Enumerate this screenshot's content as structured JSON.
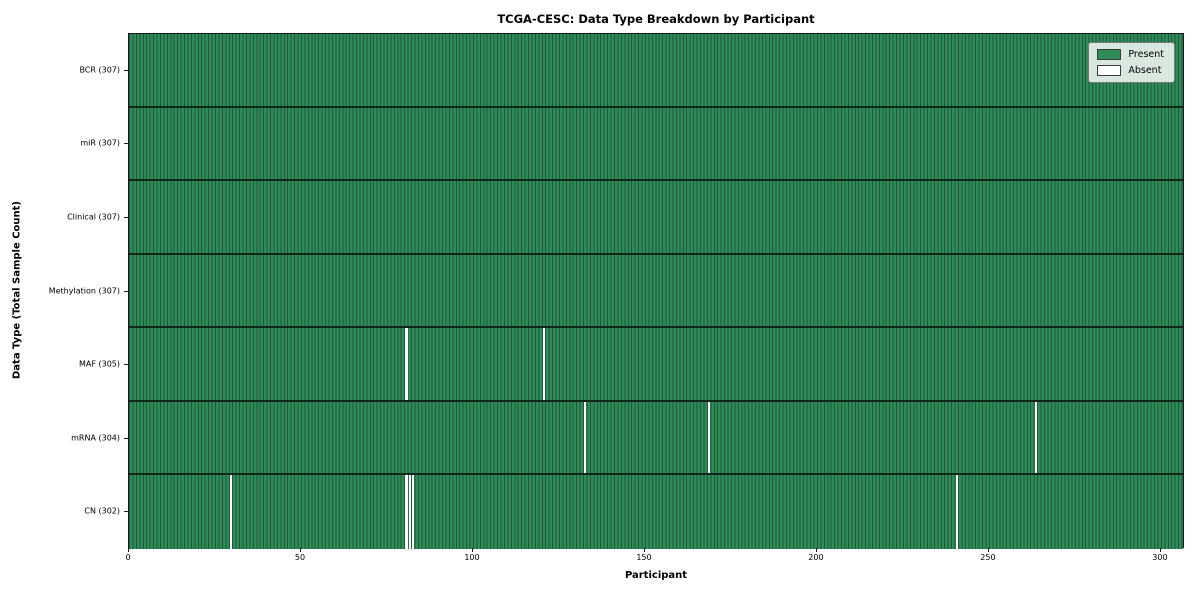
{
  "title": "TCGA-CESC: Data Type Breakdown by Participant",
  "axes": {
    "xlabel": "Participant",
    "ylabel": "Data Type (Total Sample Count)"
  },
  "chart_data": {
    "type": "heatmap",
    "title": "TCGA-CESC: Data Type Breakdown by Participant",
    "xlabel": "Participant",
    "ylabel": "Data Type (Total Sample Count)",
    "x_ticks": [
      0,
      50,
      100,
      150,
      200,
      250,
      300
    ],
    "xlim": [
      0,
      307
    ],
    "n_participants": 307,
    "grid": false,
    "legend_position": "upper right",
    "legend": [
      {
        "label": "Present",
        "color": "#2f8b57"
      },
      {
        "label": "Absent",
        "color": "#ffffff"
      }
    ],
    "rows": [
      {
        "label": "BCR (307)",
        "data_type": "BCR",
        "total": 307,
        "absent_participants": []
      },
      {
        "label": "miR (307)",
        "data_type": "miR",
        "total": 307,
        "absent_participants": []
      },
      {
        "label": "Clinical (307)",
        "data_type": "Clinical",
        "total": 307,
        "absent_participants": []
      },
      {
        "label": "Methylation (307)",
        "data_type": "Methylation",
        "total": 307,
        "absent_participants": []
      },
      {
        "label": "MAF (305)",
        "data_type": "MAF",
        "total": 305,
        "absent_participants": [
          80,
          120
        ]
      },
      {
        "label": "mRNA (304)",
        "data_type": "mRNA",
        "total": 304,
        "absent_participants": [
          132,
          168,
          263
        ]
      },
      {
        "label": "CN (302)",
        "data_type": "CN",
        "total": 302,
        "absent_participants": [
          29,
          80,
          81,
          82,
          240
        ]
      }
    ],
    "colors": {
      "present_fill": "#2f8b57",
      "column_edge": "#1c5838",
      "row_separator": "#0d2818",
      "absent_fill": "#ffffff",
      "spine": "#1a1a1a"
    }
  }
}
